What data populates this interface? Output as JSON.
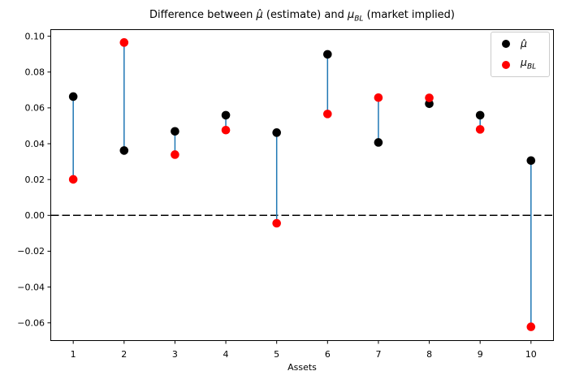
{
  "figure": {
    "title": {
      "part1": "Difference between ",
      "mu_hat": "μ̂",
      "part2": " (estimate) and ",
      "mu_base": "μ",
      "mu_sub": "BL",
      "part3": " (market implied)"
    },
    "xlabel": "Assets"
  },
  "legend": {
    "position": "upper right",
    "items": [
      {
        "label": "μ̂",
        "color": "#000000"
      },
      {
        "base": "μ",
        "sub": "BL",
        "color": "#ff0000"
      }
    ]
  },
  "chart_data": {
    "type": "scatter",
    "title": "Difference between μ̂ (estimate) and μ_BL (market implied)",
    "xlabel": "Assets",
    "ylabel": "",
    "categories": [
      1,
      2,
      3,
      4,
      5,
      6,
      7,
      8,
      9,
      10
    ],
    "series": [
      {
        "name": "μ̂ (estimate)",
        "marker": "circle",
        "color": "#000000",
        "values": [
          0.0663,
          0.0362,
          0.0469,
          0.0559,
          0.0462,
          0.0899,
          0.0407,
          0.0623,
          0.0559,
          0.0306
        ]
      },
      {
        "name": "μ_BL (market implied)",
        "marker": "circle",
        "color": "#ff0000",
        "values": [
          0.0201,
          0.0965,
          0.0339,
          0.0476,
          -0.0044,
          0.0566,
          0.0657,
          0.0656,
          0.048,
          -0.0622
        ]
      }
    ],
    "connector_color": "#1f77b4",
    "zero_line": {
      "y": 0.0,
      "style": "dashed",
      "color": "#000000"
    },
    "xlim": [
      0.55,
      10.45
    ],
    "ylim": [
      -0.0701,
      0.1039
    ],
    "yticks": [
      0.1,
      0.08,
      0.06,
      0.04,
      0.02,
      0.0,
      -0.02,
      -0.04,
      -0.06
    ],
    "ytick_labels": [
      "0.10",
      "0.08",
      "0.06",
      "0.04",
      "0.02",
      "0.00",
      "−0.02",
      "−0.04",
      "−0.06"
    ],
    "xtick_labels": [
      "1",
      "2",
      "3",
      "4",
      "5",
      "6",
      "7",
      "8",
      "9",
      "10"
    ],
    "legend_position": "upper right",
    "grid": false
  }
}
